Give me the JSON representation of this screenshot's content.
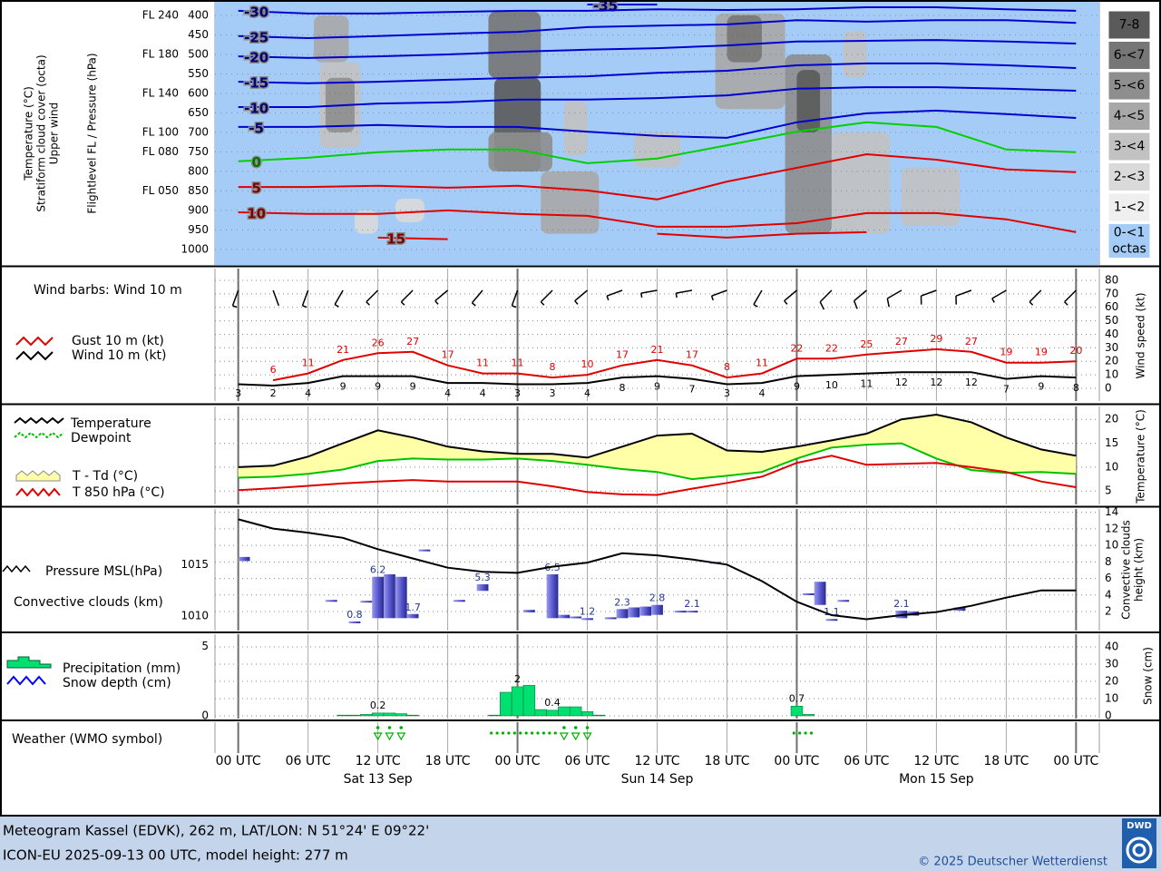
{
  "chart_data": [
    {
      "type": "upper_air",
      "axis_labels": [
        "Temperature (°C)",
        "Stratiform cloud cover (octa)",
        "Upper wind"
      ],
      "y_label": "Flightlevel FL / Pressure (hPa)",
      "ylim": [
        365,
        1040
      ],
      "y_inverted": true,
      "yticks": [
        400,
        450,
        500,
        550,
        600,
        650,
        700,
        750,
        800,
        850,
        900,
        950,
        1000
      ],
      "flticks": [
        {
          "value": 400,
          "label": "FL 240"
        },
        {
          "value": 500,
          "label": "FL 180"
        },
        {
          "value": 600,
          "label": "FL 140"
        },
        {
          "value": 700,
          "label": "FL 100"
        },
        {
          "value": 750,
          "label": "FL 080"
        },
        {
          "value": 850,
          "label": "FL 050"
        }
      ],
      "x": [
        0,
        6,
        12,
        18,
        24,
        30,
        36,
        42,
        48,
        54,
        60,
        66,
        72
      ],
      "series": [
        {
          "name": "-35",
          "color": "#0000d0",
          "values": [
            null,
            null,
            null,
            null,
            null,
            372,
            372,
            null,
            null,
            null,
            null,
            null,
            null
          ]
        },
        {
          "name": "-30",
          "color": "#0000d0",
          "values": [
            388,
            395,
            395,
            391,
            388,
            388,
            384,
            386,
            384,
            379,
            379,
            384,
            388
          ]
        },
        {
          "name": "-25",
          "color": "#0000d0",
          "values": [
            453,
            458,
            453,
            447,
            442,
            430,
            426,
            423,
            412,
            416,
            412,
            412,
            419
          ]
        },
        {
          "name": "-20",
          "color": "#0000d0",
          "values": [
            505,
            509,
            505,
            500,
            493,
            488,
            484,
            477,
            467,
            465,
            463,
            467,
            472
          ]
        },
        {
          "name": "-15",
          "color": "#0000d0",
          "values": [
            570,
            574,
            570,
            565,
            560,
            556,
            547,
            542,
            528,
            523,
            523,
            528,
            535
          ]
        },
        {
          "name": "-10",
          "color": "#0000d0",
          "values": [
            635,
            635,
            626,
            623,
            616,
            616,
            612,
            605,
            588,
            584,
            584,
            588,
            593
          ]
        },
        {
          "name": "-5",
          "color": "#0000d0",
          "values": [
            686,
            686,
            681,
            686,
            686,
            698,
            709,
            714,
            674,
            651,
            644,
            653,
            663
          ]
        },
        {
          "name": "0",
          "color": "#00d000",
          "values": [
            774,
            765,
            751,
            744,
            744,
            779,
            767,
            733,
            698,
            674,
            686,
            744,
            751
          ]
        },
        {
          "name": "5",
          "color": "#e00000",
          "values": [
            840,
            840,
            837,
            842,
            837,
            849,
            872,
            826,
            791,
            756,
            770,
            795,
            802
          ]
        },
        {
          "name": "10",
          "color": "#e00000",
          "values": [
            905,
            909,
            909,
            900,
            909,
            914,
            942,
            942,
            933,
            907,
            907,
            923,
            956
          ]
        },
        {
          "name": "15",
          "color": "#e00000",
          "values": [
            null,
            null,
            970,
            974,
            null,
            null,
            960,
            970,
            960,
            956,
            null,
            null,
            null
          ]
        }
      ],
      "cloud_cover": {
        "hour_start": [
          6.5,
          7,
          7.5,
          10,
          13.5,
          21.5,
          22,
          21.5,
          26,
          28,
          34,
          41,
          42,
          47,
          48,
          51,
          57,
          52
        ],
        "hour_end": [
          9.5,
          10.5,
          10,
          12,
          16,
          26,
          26,
          27,
          31,
          30,
          38,
          47,
          45,
          51,
          50,
          56,
          62,
          54
        ],
        "p_top": [
          400,
          520,
          560,
          900,
          870,
          390,
          560,
          700,
          800,
          620,
          700,
          395,
          400,
          500,
          540,
          700,
          790,
          440
        ],
        "p_bottom": [
          520,
          740,
          700,
          960,
          930,
          560,
          800,
          800,
          960,
          760,
          790,
          640,
          520,
          960,
          700,
          960,
          940,
          560
        ],
        "octas": [
          4,
          3,
          5,
          2,
          2,
          6,
          7,
          5,
          4,
          3,
          3,
          4,
          6,
          5,
          7,
          3,
          3,
          3
        ]
      },
      "cloud_legend": {
        "classes": [
          "0-<1",
          "1-<2",
          "2-<3",
          "3-<4",
          "4-<5",
          "5-<6",
          "6-<7",
          "7-8"
        ],
        "colors": [
          "#a4ccf6",
          "#efefef",
          "#dadada",
          "#c2c2c2",
          "#a8a8a8",
          "#8e8e8e",
          "#767676",
          "#5a5a5a"
        ],
        "unit": "octas"
      }
    },
    {
      "type": "wind",
      "title": "Wind barbs: Wind 10 m",
      "y_label": "Wind speed (kt)",
      "ylim": [
        -9.4,
        88.7
      ],
      "yticks": [
        0,
        10,
        20,
        30,
        40,
        50,
        60,
        70,
        80
      ],
      "x": [
        0,
        3,
        6,
        9,
        12,
        15,
        18,
        21,
        24,
        27,
        30,
        33,
        36,
        39,
        42,
        45,
        48,
        51,
        54,
        57,
        60,
        63,
        66,
        69,
        72
      ],
      "series": [
        {
          "name": "Gust 10 m (kt)",
          "color": "#e00000",
          "x": [
            3,
            6,
            9,
            12,
            15,
            18,
            21,
            24,
            27,
            30,
            33,
            36,
            39,
            42,
            45,
            48,
            51,
            54,
            57,
            60,
            63,
            66,
            69,
            72
          ],
          "values": [
            6,
            11,
            21,
            26,
            27,
            17,
            11,
            11,
            8,
            10,
            17,
            21,
            17,
            8,
            11,
            22,
            22,
            25,
            27,
            29,
            27,
            19,
            19,
            20
          ]
        },
        {
          "name": "Wind 10 m (kt)",
          "color": "#000000",
          "values": [
            3,
            2,
            4,
            9,
            9,
            9,
            4,
            4,
            3,
            3,
            4,
            8,
            9,
            7,
            3,
            4,
            9,
            10,
            11,
            12,
            12,
            12,
            7,
            9,
            8
          ],
          "direction": [
            200,
            160,
            200,
            210,
            225,
            225,
            230,
            220,
            200,
            225,
            230,
            250,
            260,
            260,
            250,
            210,
            230,
            225,
            230,
            240,
            250,
            250,
            240,
            225,
            225
          ]
        }
      ]
    },
    {
      "type": "temperature",
      "y_label": "Temperature (°C)",
      "ylim": [
        2.2,
        22.7
      ],
      "yticks": [
        5,
        10,
        15,
        20
      ],
      "x": [
        0,
        3,
        6,
        9,
        12,
        15,
        18,
        21,
        24,
        27,
        30,
        33,
        36,
        39,
        42,
        45,
        48,
        51,
        54,
        57,
        60,
        63,
        66,
        69,
        72
      ],
      "fill_name": "T - Td (°C)",
      "fill_color": "#ffffa8",
      "series": [
        {
          "name": "Temperature",
          "color": "#000000",
          "values": [
            10,
            10.3,
            12.2,
            15,
            17.7,
            16.2,
            14.3,
            13.3,
            12.8,
            12.8,
            12,
            14.3,
            16.6,
            17,
            13.5,
            13.2,
            14.3,
            15.6,
            17,
            20,
            21,
            19.4,
            16.2,
            13.7,
            12.4
          ]
        },
        {
          "name": "Dewpoint",
          "color": "#00c000",
          "values": [
            7.8,
            8,
            8.6,
            9.5,
            11.3,
            11.8,
            11.6,
            11.6,
            11.8,
            11.3,
            10.5,
            9.6,
            9,
            7.5,
            8.2,
            9,
            11.8,
            14.1,
            14.7,
            15,
            11.8,
            9.4,
            8.8,
            9,
            8.6
          ]
        },
        {
          "name": "T 850 hPa (°C)",
          "color": "#e00000",
          "values": [
            5.2,
            5.6,
            6.1,
            6.6,
            7,
            7.3,
            7,
            7,
            7,
            6,
            4.8,
            4.3,
            4.2,
            5.5,
            6.7,
            8,
            10.9,
            12.4,
            10.5,
            10.7,
            10.9,
            10,
            9,
            7,
            5.8
          ]
        }
      ]
    },
    {
      "type": "pressure_clouds",
      "ylim": [
        1008.6,
        1020.4
      ],
      "yticks": [
        1010,
        1015
      ],
      "y2lim": [
        -0.3,
        14.4
      ],
      "y2ticks": [
        2,
        4,
        6,
        8,
        10,
        12,
        14
      ],
      "y2_label": [
        "Convective clouds",
        "height (km)"
      ],
      "x": [
        0,
        3,
        6,
        9,
        12,
        15,
        18,
        21,
        24,
        27,
        30,
        33,
        36,
        39,
        42,
        45,
        48,
        51,
        54,
        57,
        60,
        63,
        66,
        69,
        72
      ],
      "series": [
        {
          "name": "Pressure MSL(hPa)",
          "color": "#000000",
          "values": [
            1019.4,
            1018.5,
            1018.1,
            1017.6,
            1016.5,
            1015.6,
            1014.7,
            1014.3,
            1014.2,
            1014.8,
            1015.2,
            1016.1,
            1015.9,
            1015.5,
            1015,
            1013.4,
            1011.4,
            1010.1,
            1009.7,
            1010.1,
            1010.4,
            1011,
            1011.8,
            1012.5,
            1012.5
          ]
        }
      ],
      "bars": {
        "name": "Convective clouds (km)",
        "color": "#5a5ad2",
        "axis": "y2",
        "x": [
          0.5,
          8,
          10,
          11,
          12,
          13,
          14,
          15,
          16,
          19,
          21,
          25,
          27,
          28,
          29,
          30,
          32,
          33,
          34,
          35,
          36,
          38,
          39,
          41,
          49,
          50,
          51,
          52,
          57,
          58,
          62
        ],
        "base": [
          8.1,
          3.2,
          0.6,
          3.1,
          1.2,
          1.2,
          1.2,
          1.2,
          9.3,
          3.2,
          4.5,
          1.9,
          1.2,
          1.2,
          1.2,
          1.0,
          1.2,
          1.2,
          1.3,
          1.5,
          1.6,
          1.9,
          1.9,
          7.8,
          4.0,
          2.8,
          0.9,
          3.2,
          1.2,
          1.5,
          2.1
        ],
        "values": [
          8.6,
          3.4,
          0.8,
          3.3,
          6.2,
          6.5,
          6.2,
          1.7,
          9.5,
          3.4,
          5.3,
          2.2,
          6.5,
          1.6,
          1.4,
          1.2,
          1.3,
          2.3,
          2.5,
          2.6,
          2.8,
          2.1,
          2.1,
          8.0,
          4.2,
          5.6,
          1.1,
          3.4,
          2.1,
          2.0,
          2.5
        ],
        "value_labels": [
          null,
          null,
          "0.8",
          null,
          "6.2",
          null,
          null,
          "1.7",
          null,
          null,
          "5.3",
          null,
          "6.5",
          null,
          null,
          "1.2",
          null,
          "2.3",
          null,
          null,
          "2.8",
          null,
          "2.1",
          null,
          null,
          null,
          "1.1",
          null,
          "2.1",
          null,
          null
        ]
      }
    },
    {
      "type": "precipitation",
      "ylim": [
        -0.2,
        5.9
      ],
      "yticks": [
        0,
        5
      ],
      "y2lim": [
        -1.6,
        47.4
      ],
      "y2ticks": [
        0,
        10,
        20,
        30,
        40
      ],
      "y2_label": "Snow (cm)",
      "bars": {
        "name": "Precipitation (mm)",
        "color": "#00e070",
        "x": [
          9,
          10,
          11,
          12,
          13,
          14,
          15,
          22,
          23,
          24,
          25,
          26,
          27,
          28,
          29,
          30,
          31,
          48,
          49
        ],
        "values": [
          0.05,
          0.05,
          0.1,
          0.2,
          0.2,
          0.15,
          0.05,
          0.05,
          1.7,
          2.1,
          2.2,
          0.45,
          0.4,
          0.65,
          0.65,
          0.3,
          0.05,
          0.7,
          0.1
        ],
        "value_labels": [
          null,
          null,
          null,
          "0.2",
          null,
          null,
          null,
          null,
          null,
          "2",
          null,
          null,
          "0.4",
          null,
          null,
          null,
          null,
          "0.7",
          null
        ]
      },
      "snow": {
        "name": "Snow depth (cm)",
        "color": "#0000ff"
      }
    },
    {
      "type": "weather",
      "title": "Weather (WMO symbol)",
      "color": "#00b000",
      "shower_hours": [
        12,
        13,
        14,
        28,
        29,
        30
      ],
      "drizzle_hours": [
        22,
        23,
        24,
        25,
        26,
        27,
        48,
        49
      ]
    }
  ],
  "x_axis": {
    "xlim": [
      -2,
      74
    ],
    "xticks": [
      {
        "value": 0,
        "label": "00 UTC"
      },
      {
        "value": 6,
        "label": "06 UTC"
      },
      {
        "value": 12,
        "label": "12 UTC"
      },
      {
        "value": 18,
        "label": "18 UTC"
      },
      {
        "value": 24,
        "label": "00 UTC"
      },
      {
        "value": 30,
        "label": "06 UTC"
      },
      {
        "value": 36,
        "label": "12 UTC"
      },
      {
        "value": 42,
        "label": "18 UTC"
      },
      {
        "value": 48,
        "label": "00 UTC"
      },
      {
        "value": 54,
        "label": "06 UTC"
      },
      {
        "value": 60,
        "label": "12 UTC"
      },
      {
        "value": 66,
        "label": "18 UTC"
      },
      {
        "value": 72,
        "label": "00 UTC"
      }
    ],
    "days": [
      {
        "value": 12,
        "label": "Sat 13 Sep"
      },
      {
        "value": 36,
        "label": "Sun 14 Sep"
      },
      {
        "value": 60,
        "label": "Mon 15 Sep"
      }
    ]
  },
  "footer": {
    "line1": "Meteogram Kassel (EDVK), 262 m, LAT/LON: N 51°24' E 09°22'",
    "line2": "ICON-EU 2025-09-13 00 UTC, model height: 277 m",
    "copyright": "© 2025 Deutscher Wetterdienst",
    "logo": "DWD"
  }
}
